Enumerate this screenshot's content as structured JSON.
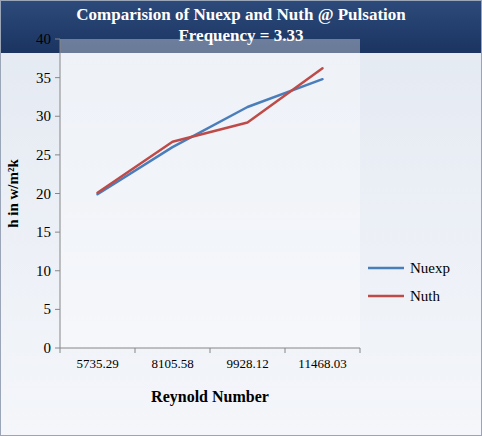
{
  "chart_data": {
    "type": "line",
    "title": "Comparision of Nuexp and Nuth @ Pulsation Frequency = 3.33",
    "x_label": "Reynold Number",
    "y_label": "h in w/m²k",
    "categories": [
      "5735.29",
      "8105.58",
      "9928.12",
      "11468.03"
    ],
    "series": [
      {
        "name": "Nuexp",
        "color": "#4a7ebb",
        "values": [
          19.9,
          26.0,
          31.2,
          34.8
        ]
      },
      {
        "name": "Nuth",
        "color": "#be4b48",
        "values": [
          20.1,
          26.7,
          29.2,
          36.2
        ]
      }
    ],
    "ylim": [
      0,
      40
    ],
    "yticks": [
      0,
      5,
      10,
      15,
      20,
      25,
      30,
      35,
      40
    ],
    "grid": false,
    "legend": "right"
  }
}
